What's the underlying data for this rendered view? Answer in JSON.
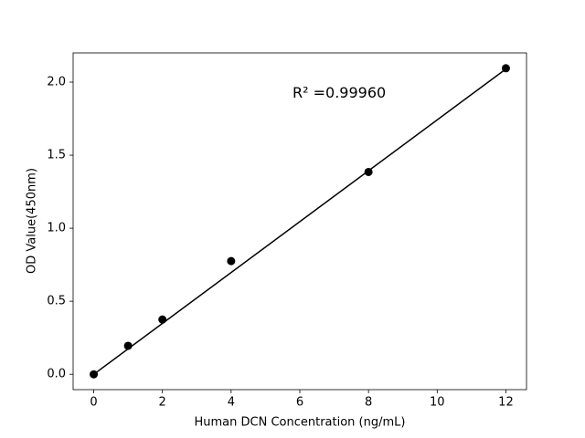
{
  "chart_data": {
    "type": "scatter",
    "x_label": "Human DCN Concentration (ng/mL)",
    "y_label": "OD Value(450nm)",
    "annotation": "R² =0.99960",
    "series": [
      {
        "x": [
          0,
          1,
          2,
          4,
          8,
          12
        ],
        "values": [
          0.0,
          0.195,
          0.375,
          0.775,
          1.385,
          2.095
        ],
        "color": "#000000"
      }
    ],
    "fit_line": {
      "x": [
        0,
        12
      ],
      "values": [
        0.0,
        2.09
      ],
      "color": "#000000"
    },
    "xlim": [
      -0.6,
      12.6
    ],
    "ylim": [
      -0.105,
      2.2
    ],
    "xticks": [
      0,
      2,
      4,
      6,
      8,
      10,
      12
    ],
    "yticks": [
      {
        "value": 0,
        "label": "0.0"
      },
      {
        "value": 0.5,
        "label": "0.5"
      },
      {
        "value": 1,
        "label": "1.0"
      },
      {
        "value": 1.5,
        "label": "1.5"
      },
      {
        "value": 2,
        "label": "2.0"
      }
    ],
    "grid": false
  }
}
